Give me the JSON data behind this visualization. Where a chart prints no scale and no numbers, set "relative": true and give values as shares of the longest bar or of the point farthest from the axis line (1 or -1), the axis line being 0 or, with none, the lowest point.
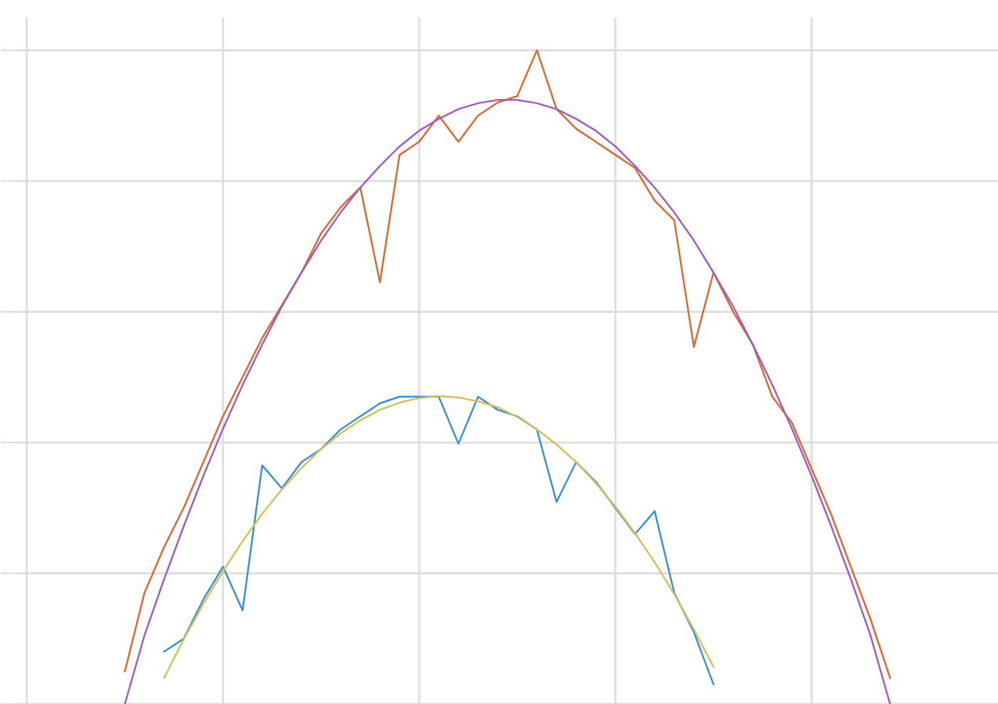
{
  "chart_data": {
    "type": "line",
    "relative": true,
    "grid": true,
    "legend": false,
    "categories": [
      null,
      null,
      null,
      null,
      null,
      null,
      null,
      null,
      null,
      null,
      null,
      null,
      null,
      null,
      null,
      null,
      null,
      null,
      null,
      null,
      null,
      null,
      null,
      null,
      null,
      null,
      null,
      null,
      null,
      null,
      null,
      null,
      null,
      null,
      null,
      null,
      null,
      null,
      null,
      null,
      null,
      null,
      null,
      null,
      null,
      null,
      null,
      null,
      null,
      null
    ],
    "series": [
      {
        "color": "#e0662f",
        "values": [
          null,
          null,
          null,
          null,
          null,
          0.05,
          0.17,
          0.24,
          0.3,
          0.37,
          0.44,
          0.5,
          0.56,
          0.61,
          0.66,
          0.72,
          0.76,
          0.79,
          0.645,
          0.84,
          0.86,
          0.9,
          0.86,
          0.9,
          0.92,
          0.93,
          1.0,
          0.91,
          0.88,
          0.86,
          0.84,
          0.82,
          0.77,
          0.74,
          0.546,
          0.66,
          0.6,
          0.55,
          0.47,
          0.43,
          0.36,
          0.29,
          0.21,
          0.13,
          0.04,
          null,
          null,
          null,
          null,
          null
        ]
      },
      {
        "color": "#a05cbf",
        "values": [
          null,
          null,
          null,
          null,
          null,
          0,
          0.105,
          0.191,
          0.272,
          0.349,
          0.421,
          0.488,
          0.55,
          0.608,
          0.66,
          0.709,
          0.752,
          0.79,
          0.823,
          0.853,
          0.877,
          0.895,
          0.91,
          0.919,
          0.924,
          0.924,
          0.919,
          0.91,
          0.895,
          0.877,
          0.853,
          0.823,
          0.79,
          0.752,
          0.709,
          0.66,
          0.608,
          0.55,
          0.488,
          0.421,
          0.349,
          0.272,
          0.191,
          0.105,
          0,
          null,
          null,
          null,
          null,
          null
        ]
      },
      {
        "color": "#3a8fd0",
        "values": [
          null,
          null,
          null,
          null,
          null,
          null,
          null,
          0.08,
          0.1,
          0.16,
          0.21,
          0.143,
          0.365,
          0.33,
          0.37,
          0.39,
          0.42,
          0.44,
          0.46,
          0.47,
          0.47,
          0.47,
          0.398,
          0.47,
          0.45,
          0.44,
          0.42,
          0.309,
          0.37,
          0.34,
          0.3,
          0.26,
          0.295,
          0.17,
          0.11,
          0.03,
          null,
          null,
          null,
          null,
          null,
          null,
          null,
          null,
          null,
          null,
          null,
          null,
          null,
          null
        ]
      },
      {
        "color": "#d4c05a",
        "values": [
          null,
          null,
          null,
          null,
          null,
          null,
          null,
          0.04,
          0.099,
          0.153,
          0.203,
          0.249,
          0.291,
          0.328,
          0.361,
          0.39,
          0.414,
          0.434,
          0.45,
          0.461,
          0.468,
          0.471,
          0.469,
          0.463,
          0.454,
          0.439,
          0.42,
          0.397,
          0.37,
          0.338,
          0.302,
          0.261,
          0.217,
          0.168,
          0.114,
          0.057,
          null,
          null,
          null,
          null,
          null,
          null,
          null,
          null,
          null,
          null,
          null,
          null,
          null,
          null
        ]
      }
    ]
  }
}
